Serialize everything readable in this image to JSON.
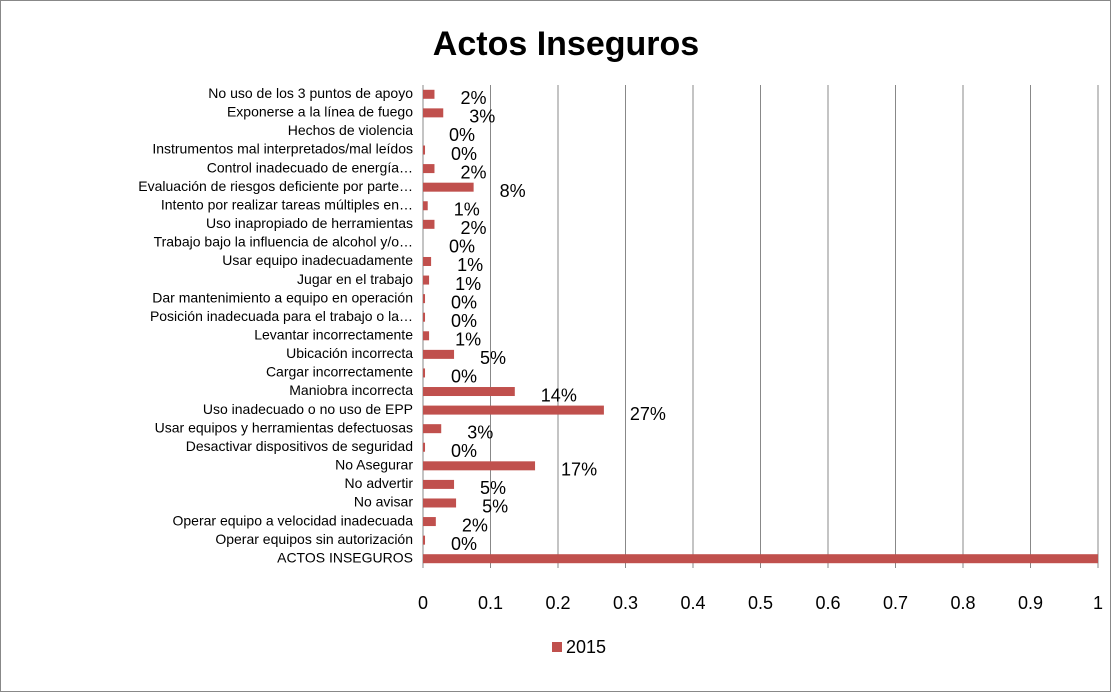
{
  "chart_data": {
    "type": "hbar",
    "title": "Actos Inseguros",
    "categories": [
      "No uso de los 3 puntos de apoyo",
      "Exponerse a la línea de fuego",
      "Hechos de violencia",
      "Instrumentos mal interpretados/mal leídos",
      "Control inadecuado de energía…",
      "Evaluación de riesgos deficiente por parte…",
      "Intento por realizar tareas múltiples en…",
      "Uso inapropiado de herramientas",
      "Trabajo bajo la influencia de alcohol y/o…",
      "Usar equipo inadecuadamente",
      "Jugar en el trabajo",
      "Dar mantenimiento a equipo en operación",
      "Posición inadecuada para el trabajo o la…",
      "Levantar incorrectamente",
      "Ubicación incorrecta",
      "Cargar incorrectamente",
      "Maniobra incorrecta",
      "Uso inadecuado o no uso de EPP",
      "Usar equipos y herramientas defectuosas",
      "Desactivar dispositivos de seguridad",
      "No Asegurar",
      "No advertir",
      "No avisar",
      "Operar equipo a velocidad inadecuada",
      "Operar equipos sin autorización",
      "ACTOS INSEGUROS"
    ],
    "series": [
      {
        "name": "2015",
        "color": "#c0504d",
        "values": [
          0.017,
          0.03,
          0,
          0.003,
          0.017,
          0.075,
          0.007,
          0.017,
          0,
          0.012,
          0.009,
          0.003,
          0.003,
          0.009,
          0.046,
          0.003,
          0.136,
          0.268,
          0.027,
          0.003,
          0.166,
          0.046,
          0.049,
          0.019,
          0.003,
          1
        ],
        "value_labels": [
          "2%",
          "3%",
          "0%",
          "0%",
          "2%",
          "8%",
          "1%",
          "2%",
          "0%",
          "1%",
          "1%",
          "0%",
          "0%",
          "1%",
          "5%",
          "0%",
          "14%",
          "27%",
          "3%",
          "0%",
          "17%",
          "5%",
          "5%",
          "2%",
          "0%",
          null
        ]
      }
    ],
    "xlim": [
      0,
      1
    ],
    "xticks": [
      0,
      0.1,
      0.2,
      0.3,
      0.4,
      0.5,
      0.6,
      0.7,
      0.8,
      0.9,
      1
    ],
    "grid": true,
    "legend": "bottom"
  }
}
